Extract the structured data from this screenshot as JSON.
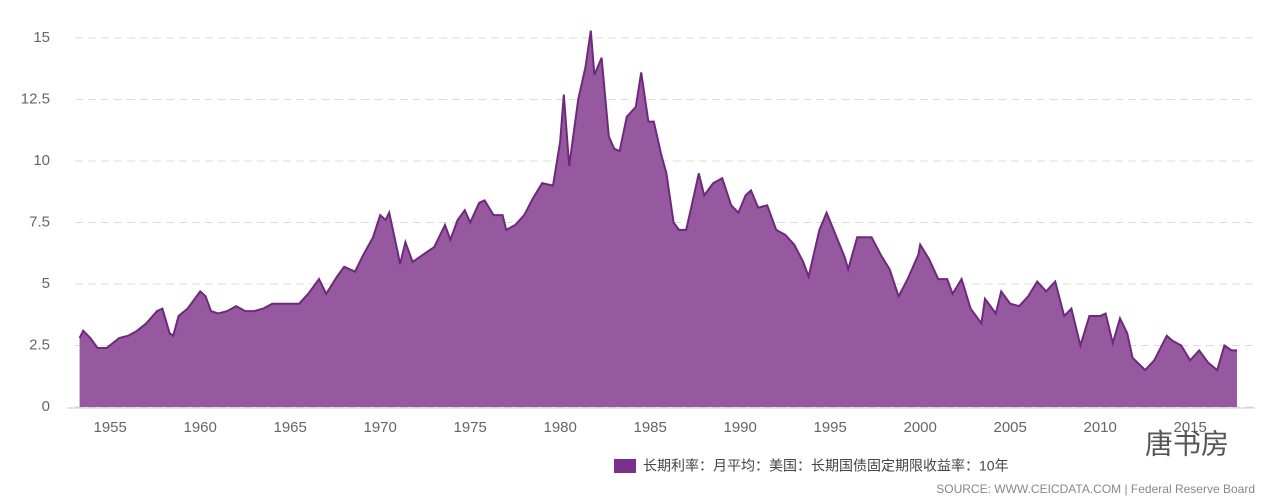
{
  "chart_data": {
    "type": "area",
    "x": [
      1953.3,
      1953.5,
      1953.9,
      1954.3,
      1954.8,
      1955.5,
      1956,
      1956.5,
      1957,
      1957.6,
      1957.9,
      1958.3,
      1958.5,
      1958.8,
      1959.3,
      1959.8,
      1960,
      1960.3,
      1960.6,
      1961,
      1961.5,
      1962,
      1962.5,
      1963,
      1963.5,
      1964,
      1964.5,
      1965,
      1965.5,
      1966,
      1966.6,
      1967,
      1967.6,
      1968,
      1968.6,
      1969,
      1969.6,
      1970,
      1970.3,
      1970.5,
      1971,
      1971.1,
      1971.4,
      1971.8,
      1972,
      1972.6,
      1973,
      1973.6,
      1973.9,
      1974.3,
      1974.7,
      1975,
      1975.5,
      1975.8,
      1976.3,
      1976.8,
      1977,
      1977.5,
      1978,
      1978.5,
      1979,
      1979.6,
      1980,
      1980.2,
      1980.5,
      1981,
      1981.4,
      1981.7,
      1981.9,
      1982.3,
      1982.7,
      1983,
      1983.3,
      1983.7,
      1984.2,
      1984.5,
      1984.9,
      1985.2,
      1985.6,
      1985.9,
      1986.3,
      1986.6,
      1987,
      1987.4,
      1987.7,
      1988,
      1988.5,
      1989,
      1989.5,
      1989.9,
      1990.3,
      1990.6,
      1991,
      1991.5,
      1992,
      1992.5,
      1993,
      1993.5,
      1993.8,
      1994.4,
      1994.8,
      1995.3,
      1995.8,
      1996,
      1996.5,
      1997.3,
      1997.8,
      1998.3,
      1998.8,
      1999.3,
      1999.9,
      2000,
      2000.5,
      2001,
      2001.5,
      2001.8,
      2002.3,
      2002.8,
      2003.4,
      2003.6,
      2004.2,
      2004.5,
      2005,
      2005.5,
      2006,
      2006.5,
      2007,
      2007.5,
      2008,
      2008.4,
      2008.9,
      2009.4,
      2010,
      2010.3,
      2010.7,
      2011.1,
      2011.5,
      2011.8,
      2012.5,
      2013,
      2013.7,
      2014,
      2014.5,
      2015,
      2015.5,
      2016,
      2016.5,
      2016.9,
      2017.3,
      2017.6
    ],
    "values": [
      2.8,
      3.1,
      2.8,
      2.4,
      2.4,
      2.8,
      2.9,
      3.1,
      3.4,
      3.9,
      4.0,
      3.0,
      2.9,
      3.7,
      4.0,
      4.5,
      4.7,
      4.5,
      3.9,
      3.8,
      3.9,
      4.1,
      3.9,
      3.9,
      4.0,
      4.2,
      4.2,
      4.2,
      4.2,
      4.6,
      5.2,
      4.6,
      5.3,
      5.7,
      5.5,
      6.1,
      6.9,
      7.8,
      7.6,
      7.9,
      6.2,
      5.8,
      6.7,
      5.9,
      6.0,
      6.3,
      6.5,
      7.4,
      6.8,
      7.6,
      8.0,
      7.5,
      8.3,
      8.4,
      7.8,
      7.8,
      7.2,
      7.4,
      7.8,
      8.5,
      9.1,
      9.0,
      10.8,
      12.7,
      9.8,
      12.5,
      13.8,
      15.3,
      13.5,
      14.2,
      11.0,
      10.5,
      10.4,
      11.8,
      12.2,
      13.6,
      11.6,
      11.6,
      10.3,
      9.5,
      7.5,
      7.2,
      7.2,
      8.5,
      9.5,
      8.6,
      9.1,
      9.3,
      8.2,
      7.9,
      8.6,
      8.8,
      8.1,
      8.2,
      7.2,
      7.0,
      6.6,
      5.9,
      5.3,
      7.2,
      7.9,
      7.0,
      6.1,
      5.6,
      6.9,
      6.9,
      6.2,
      5.6,
      4.5,
      5.2,
      6.2,
      6.6,
      6.0,
      5.2,
      5.2,
      4.6,
      5.2,
      4.0,
      3.4,
      4.4,
      3.8,
      4.7,
      4.2,
      4.1,
      4.5,
      5.1,
      4.7,
      5.1,
      3.7,
      4.0,
      2.5,
      3.7,
      3.7,
      3.8,
      2.6,
      3.6,
      3.0,
      2.0,
      1.5,
      1.9,
      2.9,
      2.7,
      2.5,
      1.9,
      2.3,
      1.8,
      1.5,
      2.5,
      2.3,
      2.3
    ],
    "color": "#96599f",
    "line_color": "#6d2a7c",
    "xlim": [
      1952.6,
      2018.6
    ],
    "xticks": [
      1955,
      1960,
      1965,
      1970,
      1975,
      1980,
      1985,
      1990,
      1995,
      2000,
      2005,
      2010,
      2015
    ],
    "ylim": [
      0,
      15
    ],
    "yticks": [
      0,
      2.5,
      5,
      7.5,
      10,
      12.5,
      15
    ],
    "grid": true,
    "legend": {
      "name": "长期利率：月平均：美国：长期国债固定期限收益率：10年",
      "color": "#7b2f8e"
    },
    "source": "SOURCE: WWW.CEICDATA.COM | Federal Reserve Board",
    "watermark": "唐书房"
  }
}
